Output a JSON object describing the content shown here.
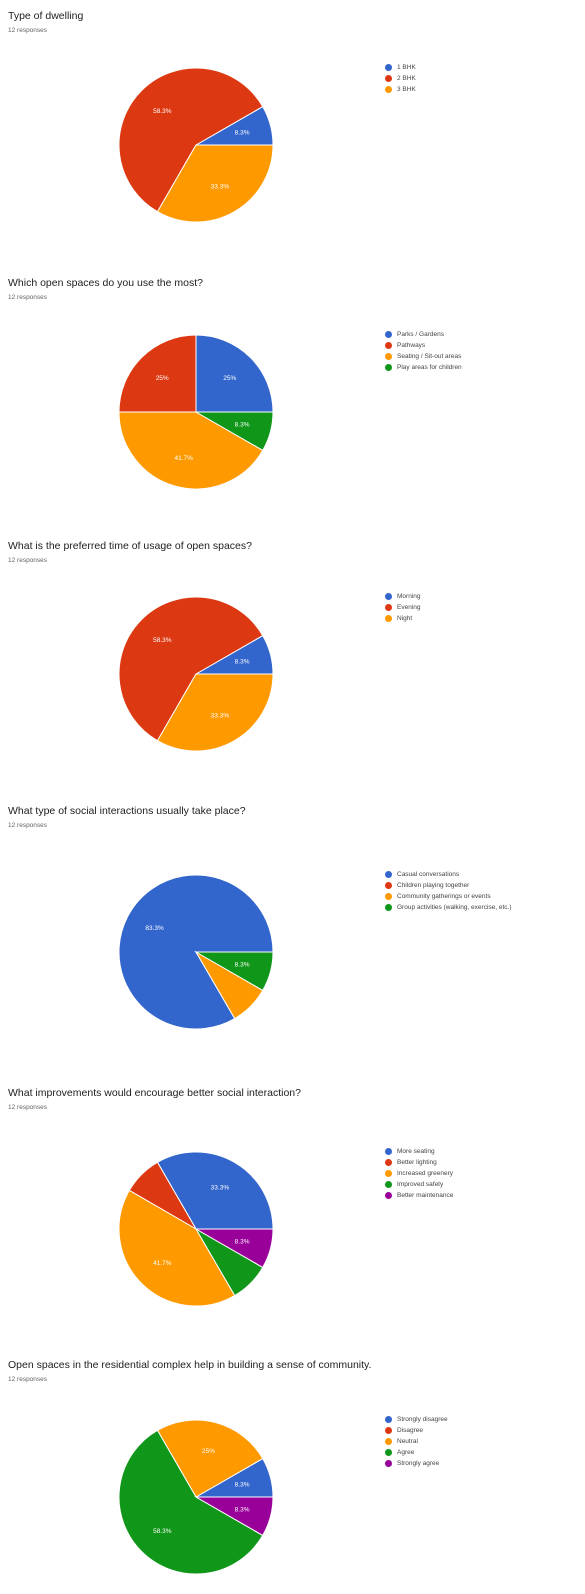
{
  "colors": {
    "blue": "#3366cc",
    "red": "#dc3912",
    "orange": "#ff9900",
    "green": "#109618",
    "purple": "#990099"
  },
  "chart_data": [
    {
      "type": "pie",
      "title": "Type of dwelling",
      "subtitle": "12 responses",
      "legend_position": "right",
      "slices": [
        {
          "label": "1 BHK",
          "value": 8.3,
          "display": "8.3%",
          "color": "#3366cc"
        },
        {
          "label": "2 BHK",
          "value": 58.3,
          "display": "58.3%",
          "color": "#dc3912"
        },
        {
          "label": "3 BHK",
          "value": 33.3,
          "display": "33.3%",
          "color": "#ff9900"
        }
      ]
    },
    {
      "type": "pie",
      "title": "Which open spaces do you use the most?",
      "subtitle": "12 responses",
      "legend_position": "right",
      "slices": [
        {
          "label": "Parks / Gardens",
          "value": 25,
          "display": "25%",
          "color": "#3366cc"
        },
        {
          "label": "Pathways",
          "value": 25,
          "display": "25%",
          "color": "#dc3912"
        },
        {
          "label": "Seating / Sit-out areas",
          "value": 41.7,
          "display": "41.7%",
          "color": "#ff9900"
        },
        {
          "label": "Play areas for children",
          "value": 8.3,
          "display": "8.3%",
          "color": "#109618"
        }
      ]
    },
    {
      "type": "pie",
      "title": "What is the preferred time of usage of open spaces?",
      "subtitle": "12 responses",
      "legend_position": "right",
      "slices": [
        {
          "label": "Morning",
          "value": 8.3,
          "display": "8.3%",
          "color": "#3366cc"
        },
        {
          "label": "Evening",
          "value": 58.3,
          "display": "58.3%",
          "color": "#dc3912"
        },
        {
          "label": "Night",
          "value": 33.3,
          "display": "33.3%",
          "color": "#ff9900"
        }
      ]
    },
    {
      "type": "pie",
      "title": "What type of social interactions usually take place?",
      "subtitle": "12 responses",
      "legend_position": "right",
      "slices": [
        {
          "label": "Casual conversations",
          "value": 83.3,
          "display": "83.3%",
          "color": "#3366cc"
        },
        {
          "label": "Children playing together",
          "value": 0,
          "display": "",
          "color": "#dc3912"
        },
        {
          "label": "Community gatherings or events",
          "value": 8.3,
          "display": "",
          "color": "#ff9900"
        },
        {
          "label": "Group activities (walking, exercise, etc.)",
          "value": 8.3,
          "display": "8.3%",
          "color": "#109618"
        }
      ]
    },
    {
      "type": "pie",
      "title": "What improvements would encourage better social interaction?",
      "subtitle": "12 responses",
      "legend_position": "right",
      "slices": [
        {
          "label": "More seating",
          "value": 33.3,
          "display": "33.3%",
          "color": "#3366cc"
        },
        {
          "label": "Better lighting",
          "value": 8.3,
          "display": "",
          "color": "#dc3912"
        },
        {
          "label": "Increased greenery",
          "value": 41.7,
          "display": "41.7%",
          "color": "#ff9900"
        },
        {
          "label": "Improved safety",
          "value": 8.3,
          "display": "",
          "color": "#109618"
        },
        {
          "label": "Better maintenance",
          "value": 8.3,
          "display": "8.3%",
          "color": "#990099"
        }
      ]
    },
    {
      "type": "pie",
      "title": "Open spaces in the residential complex help in building a sense of community.",
      "subtitle": "12 responses",
      "legend_position": "right",
      "slices": [
        {
          "label": "Strongly disagree",
          "value": 8.3,
          "display": "8.3%",
          "color": "#3366cc"
        },
        {
          "label": "Disagree",
          "value": 0,
          "display": "",
          "color": "#dc3912"
        },
        {
          "label": "Neutral",
          "value": 25,
          "display": "25%",
          "color": "#ff9900"
        },
        {
          "label": "Agree",
          "value": 58.3,
          "display": "58.3%",
          "color": "#109618"
        },
        {
          "label": "Strongly agree",
          "value": 8.3,
          "display": "8.3%",
          "color": "#990099"
        }
      ]
    }
  ]
}
